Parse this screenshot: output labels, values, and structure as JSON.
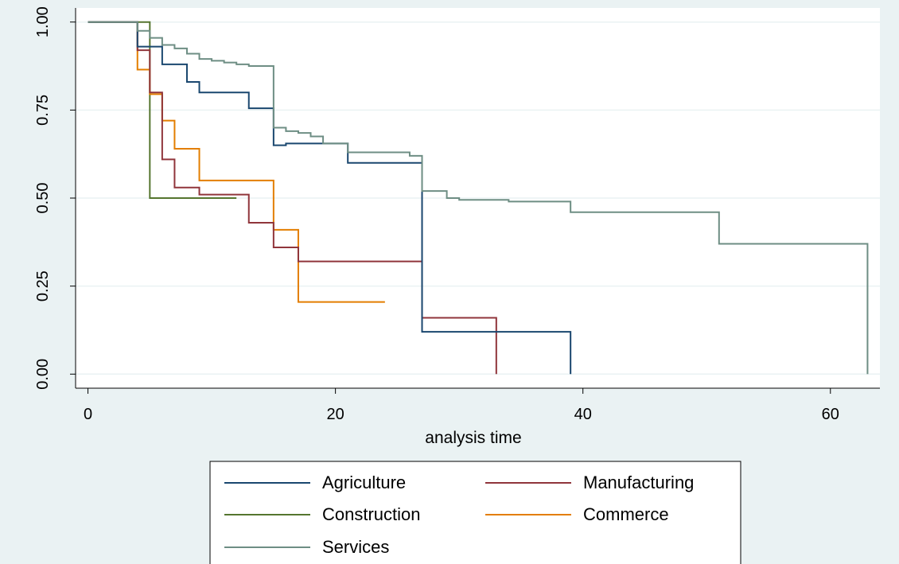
{
  "chart_data": {
    "type": "line",
    "subtype": "step (Kaplan-Meier survival estimates)",
    "title": "",
    "xlabel": "analysis time",
    "ylabel": "",
    "xlim": [
      -1,
      64
    ],
    "ylim": [
      -0.04,
      1.04
    ],
    "x_ticks": [
      0,
      20,
      40,
      60
    ],
    "x_tick_labels": [
      "0",
      "20",
      "40",
      "60"
    ],
    "y_ticks": [
      0,
      0.25,
      0.5,
      0.75,
      1
    ],
    "y_tick_labels": [
      "0.00",
      "0.25",
      "0.50",
      "0.75",
      "1.00"
    ],
    "grid": "horizontal",
    "legend_position": "bottom",
    "legend_columns": 2,
    "background_color": "#eaf2f3",
    "plot_background_color": "#ffffff",
    "series": [
      {
        "name": "Agriculture",
        "color": "#1a476f",
        "x": [
          0,
          4,
          6,
          8,
          9,
          13,
          15,
          16,
          21,
          27,
          39
        ],
        "y": [
          1.0,
          0.93,
          0.88,
          0.83,
          0.8,
          0.755,
          0.65,
          0.655,
          0.6,
          0.12,
          0.0
        ]
      },
      {
        "name": "Manufacturing",
        "color": "#90353b",
        "x": [
          0,
          4,
          5,
          6,
          7,
          9,
          13,
          15,
          17,
          27,
          33
        ],
        "y": [
          1.0,
          0.92,
          0.8,
          0.61,
          0.53,
          0.51,
          0.43,
          0.36,
          0.32,
          0.16,
          0.0
        ]
      },
      {
        "name": "Construction",
        "color": "#55752f",
        "x": [
          0,
          5,
          12
        ],
        "y": [
          1.0,
          0.5,
          0.5
        ]
      },
      {
        "name": "Commerce",
        "color": "#e37e00",
        "x": [
          0,
          4,
          5,
          6,
          7,
          9,
          15,
          17,
          24
        ],
        "y": [
          1.0,
          0.865,
          0.795,
          0.72,
          0.64,
          0.55,
          0.41,
          0.205,
          0.205
        ]
      },
      {
        "name": "Services",
        "color": "#6e8e84",
        "x": [
          0,
          4,
          5,
          6,
          7,
          8,
          9,
          10,
          11,
          12,
          13,
          15,
          16,
          17,
          18,
          19,
          21,
          26,
          27,
          28,
          29,
          30,
          34,
          39,
          51,
          63
        ],
        "y": [
          1.0,
          0.975,
          0.955,
          0.935,
          0.925,
          0.91,
          0.895,
          0.89,
          0.885,
          0.88,
          0.875,
          0.7,
          0.69,
          0.685,
          0.675,
          0.655,
          0.63,
          0.62,
          0.52,
          0.52,
          0.5,
          0.495,
          0.49,
          0.46,
          0.37,
          0.0
        ]
      }
    ]
  }
}
